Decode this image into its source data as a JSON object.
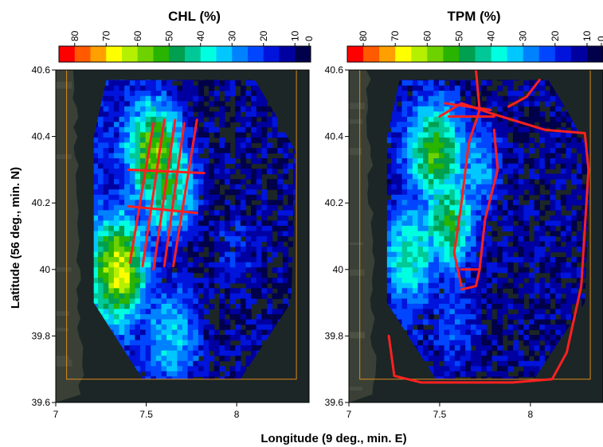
{
  "figure": {
    "xlabel": "Longitude (9 deg., min. E)",
    "ylabel": "Latitude (56 deg., min. N)"
  },
  "colors": {
    "scale": [
      "#ff0000",
      "#ff5a00",
      "#ffa000",
      "#ffff00",
      "#b4f000",
      "#6ed200",
      "#28b400",
      "#00a050",
      "#00c896",
      "#00ffe0",
      "#00c8ff",
      "#0082ff",
      "#0046ff",
      "#0014dc",
      "#0000a0",
      "#00004b"
    ],
    "track": "#ff2020",
    "boundary": "#e08a1c",
    "land": "#3a4036",
    "water": "#1c2626"
  },
  "chart_data": [
    {
      "type": "heatmap",
      "title": "CHL (%)",
      "colorbar_ticks": [
        "80",
        "70",
        "60",
        "50",
        "40",
        "30",
        "20",
        "10",
        "0"
      ],
      "xlim": [
        7,
        8.4
      ],
      "ylim": [
        39.6,
        40.6
      ],
      "x_ticks": [
        "7",
        "7.5",
        "8"
      ],
      "y_ticks": [
        "39.6",
        "39.8",
        "40",
        "40.2",
        "40.4",
        "40.6"
      ],
      "boundary": [
        [
          7.06,
          40.6
        ],
        [
          8.33,
          40.6
        ],
        [
          8.33,
          39.67
        ],
        [
          7.06,
          39.67
        ]
      ],
      "hotspots": [
        {
          "x": 7.55,
          "y": 40.35,
          "value": 55
        },
        {
          "x": 7.35,
          "y": 40.0,
          "value": 60
        },
        {
          "x": 7.62,
          "y": 40.25,
          "value": 45
        },
        {
          "x": 7.65,
          "y": 39.8,
          "value": 30
        },
        {
          "x": 8.0,
          "y": 40.05,
          "value": 12
        }
      ],
      "tracks": [
        {
          "points": [
            [
              7.41,
              40.02
            ],
            [
              7.54,
              40.44
            ]
          ]
        },
        {
          "points": [
            [
              7.48,
              40.01
            ],
            [
              7.6,
              40.45
            ]
          ]
        },
        {
          "points": [
            [
              7.54,
              40.0
            ],
            [
              7.66,
              40.45
            ]
          ]
        },
        {
          "points": [
            [
              7.6,
              40.01
            ],
            [
              7.71,
              40.44
            ]
          ]
        },
        {
          "points": [
            [
              7.65,
              40.01
            ],
            [
              7.78,
              40.45
            ]
          ]
        },
        {
          "points": [
            [
              7.4,
              40.3
            ],
            [
              7.82,
              40.29
            ]
          ]
        },
        {
          "points": [
            [
              7.4,
              40.19
            ],
            [
              7.78,
              40.17
            ]
          ]
        }
      ]
    },
    {
      "type": "heatmap",
      "title": "TPM (%)",
      "colorbar_ticks": [
        "80",
        "70",
        "60",
        "50",
        "40",
        "30",
        "20",
        "10",
        "0"
      ],
      "xlim": [
        7,
        8.4
      ],
      "ylim": [
        39.6,
        40.6
      ],
      "x_ticks": [
        "7",
        "7.5",
        "8"
      ],
      "y_ticks": [
        "39.6",
        "39.8",
        "40",
        "40.2",
        "40.4",
        "40.6"
      ],
      "boundary": [
        [
          7.06,
          40.6
        ],
        [
          8.33,
          40.6
        ],
        [
          8.33,
          39.67
        ],
        [
          7.06,
          39.67
        ]
      ],
      "hotspots": [
        {
          "x": 7.48,
          "y": 40.35,
          "value": 50
        },
        {
          "x": 7.55,
          "y": 40.15,
          "value": 45
        },
        {
          "x": 7.35,
          "y": 40.05,
          "value": 35
        },
        {
          "x": 7.7,
          "y": 40.3,
          "value": 25
        },
        {
          "x": 7.6,
          "y": 39.85,
          "value": 15
        }
      ],
      "tracks": [
        {
          "points": [
            [
              7.5,
              40.46
            ],
            [
              7.62,
              40.5
            ],
            [
              7.78,
              40.47
            ],
            [
              7.9,
              40.45
            ],
            [
              8.08,
              40.42
            ],
            [
              8.3,
              40.41
            ],
            [
              8.32,
              40.3
            ],
            [
              8.28,
              39.95
            ],
            [
              8.2,
              39.75
            ],
            [
              8.12,
              39.67
            ],
            [
              7.9,
              39.66
            ],
            [
              7.4,
              39.66
            ],
            [
              7.25,
              39.68
            ],
            [
              7.22,
              39.8
            ]
          ]
        },
        {
          "points": [
            [
              7.53,
              40.5
            ],
            [
              7.78,
              40.48
            ]
          ]
        },
        {
          "points": [
            [
              7.55,
              40.46
            ],
            [
              7.8,
              40.46
            ]
          ]
        },
        {
          "points": [
            [
              7.7,
              40.6
            ],
            [
              7.72,
              40.48
            ],
            [
              7.66,
              40.38
            ],
            [
              7.62,
              40.2
            ],
            [
              7.58,
              40.05
            ],
            [
              7.62,
              39.95
            ]
          ]
        },
        {
          "points": [
            [
              7.8,
              40.42
            ],
            [
              7.82,
              40.3
            ],
            [
              7.75,
              40.15
            ],
            [
              7.72,
              40.0
            ]
          ]
        },
        {
          "points": [
            [
              7.62,
              40.0
            ],
            [
              7.72,
              40.0
            ],
            [
              7.7,
              39.95
            ],
            [
              7.62,
              39.94
            ]
          ]
        },
        {
          "points": [
            [
              7.88,
              40.49
            ],
            [
              7.98,
              40.52
            ],
            [
              8.05,
              40.57
            ]
          ]
        }
      ]
    }
  ]
}
